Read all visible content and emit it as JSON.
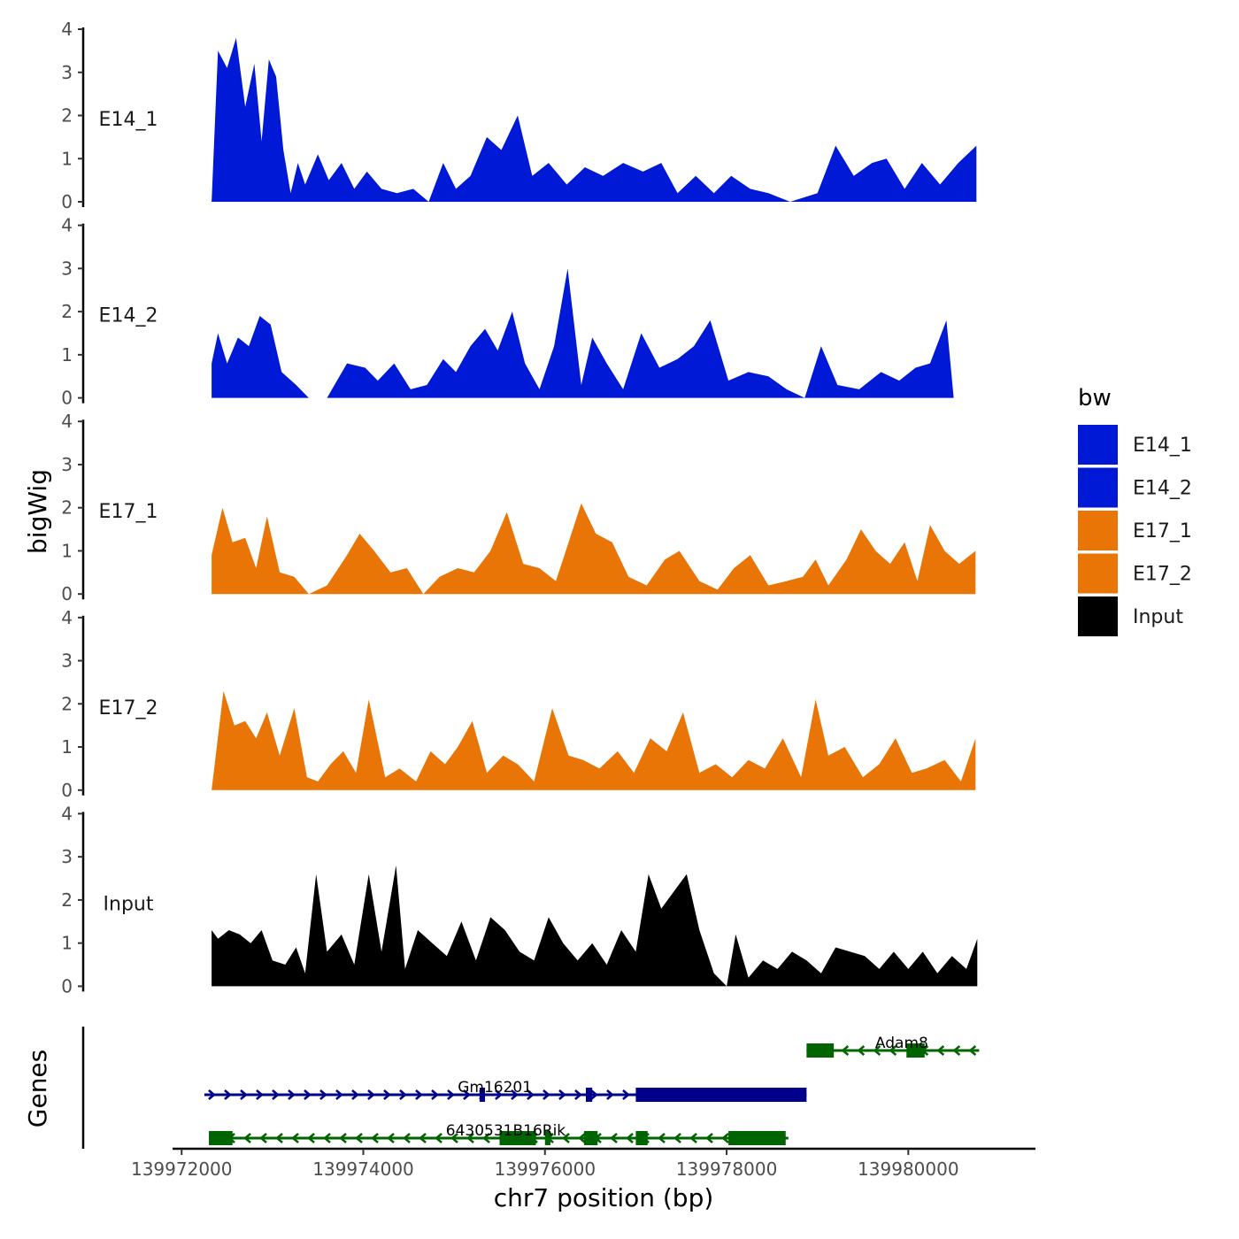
{
  "chart_data": {
    "type": "area",
    "ylabel": "bigWig",
    "xlabel": "chr7 position (bp)",
    "x_range": [
      139972000,
      139980800
    ],
    "xlim": [
      139971900,
      139981400
    ],
    "ylim": [
      0,
      4
    ],
    "y_ticks": [
      "0",
      "1",
      "2",
      "3",
      "4"
    ],
    "x_ticks": [
      {
        "value": 139972000,
        "label": "139972000"
      },
      {
        "value": 139974000,
        "label": "139974000"
      },
      {
        "value": 139976000,
        "label": "139976000"
      },
      {
        "value": 139978000,
        "label": "139978000"
      },
      {
        "value": 139980000,
        "label": "139980000"
      }
    ],
    "legend": {
      "title": "bw",
      "items": [
        {
          "label": "E14_1",
          "color": "#0019D6"
        },
        {
          "label": "E14_2",
          "color": "#0019D6"
        },
        {
          "label": "E17_1",
          "color": "#E87506"
        },
        {
          "label": "E17_2",
          "color": "#E87506"
        },
        {
          "label": "Input",
          "color": "#000000"
        }
      ]
    },
    "series": [
      {
        "name": "E14_1",
        "color": "#0019D6",
        "x": [
          139972330,
          139972400,
          139972500,
          139972600,
          139972700,
          139972800,
          139972880,
          139972960,
          139973040,
          139973120,
          139973200,
          139973280,
          139973360,
          139973500,
          139973620,
          139973760,
          139973900,
          139974040,
          139974200,
          139974370,
          139974550,
          139974720,
          139974880,
          139975020,
          139975180,
          139975360,
          139975520,
          139975700,
          139975860,
          139976040,
          139976240,
          139976440,
          139976640,
          139976860,
          139977080,
          139977280,
          139977460,
          139977660,
          139977860,
          139978050,
          139978260,
          139978460,
          139978700,
          139979000,
          139979200,
          139979400,
          139979600,
          139979760,
          139979960,
          139980150,
          139980350,
          139980550,
          139980750
        ],
        "y": [
          0,
          3.5,
          3.1,
          3.8,
          2.2,
          3.2,
          1.4,
          3.3,
          2.9,
          1.2,
          0.2,
          0.9,
          0.4,
          1.1,
          0.5,
          0.9,
          0.3,
          0.7,
          0.3,
          0.2,
          0.3,
          0.0,
          0.9,
          0.3,
          0.6,
          1.5,
          1.2,
          2.0,
          0.6,
          0.9,
          0.4,
          0.8,
          0.6,
          0.9,
          0.7,
          0.9,
          0.2,
          0.6,
          0.2,
          0.6,
          0.3,
          0.2,
          0.0,
          0.2,
          1.3,
          0.6,
          0.9,
          1.0,
          0.3,
          0.9,
          0.4,
          0.9,
          1.3
        ]
      },
      {
        "name": "E14_2",
        "color": "#0019D6",
        "x": [
          139972330,
          139972400,
          139972500,
          139972620,
          139972740,
          139972860,
          139972980,
          139973100,
          139973260,
          139973400,
          139973600,
          139973820,
          139974020,
          139974160,
          139974340,
          139974520,
          139974700,
          139974880,
          139975020,
          139975180,
          139975340,
          139975480,
          139975640,
          139975780,
          139975940,
          139976100,
          139976250,
          139976400,
          139976520,
          139976680,
          139976860,
          139977060,
          139977260,
          139977460,
          139977640,
          139977820,
          139978020,
          139978240,
          139978460,
          139978660,
          139978860,
          139979040,
          139979220,
          139979460,
          139979700,
          139979900,
          139980080,
          139980240,
          139980420,
          139980500
        ],
        "y": [
          0.8,
          1.5,
          0.8,
          1.4,
          1.2,
          1.9,
          1.7,
          0.6,
          0.3,
          0.0,
          0.0,
          0.8,
          0.7,
          0.4,
          0.8,
          0.2,
          0.3,
          0.9,
          0.6,
          1.2,
          1.6,
          1.1,
          2.0,
          0.8,
          0.2,
          1.2,
          3.0,
          0.3,
          1.4,
          0.8,
          0.2,
          1.5,
          0.7,
          0.9,
          1.2,
          1.8,
          0.4,
          0.6,
          0.5,
          0.2,
          0.0,
          1.2,
          0.3,
          0.2,
          0.6,
          0.4,
          0.7,
          0.8,
          1.8,
          0.0
        ]
      },
      {
        "name": "E17_1",
        "color": "#E87506",
        "x": [
          139972330,
          139972450,
          139972560,
          139972700,
          139972820,
          139972940,
          139973080,
          139973240,
          139973400,
          139973600,
          139973820,
          139973960,
          139974120,
          139974300,
          139974480,
          139974660,
          139974840,
          139975040,
          139975220,
          139975400,
          139975580,
          139975760,
          139975940,
          139976120,
          139976260,
          139976400,
          139976560,
          139976740,
          139976920,
          139977120,
          139977320,
          139977480,
          139977700,
          139977900,
          139978080,
          139978260,
          139978460,
          139978660,
          139978840,
          139978980,
          139979120,
          139979320,
          139979480,
          139979640,
          139979800,
          139979960,
          139980100,
          139980240,
          139980400,
          139980560,
          139980740
        ],
        "y": [
          0.9,
          2.0,
          1.2,
          1.3,
          0.6,
          1.8,
          0.5,
          0.4,
          0.0,
          0.2,
          0.9,
          1.4,
          1.0,
          0.5,
          0.6,
          0.0,
          0.4,
          0.6,
          0.5,
          1.0,
          1.9,
          0.7,
          0.6,
          0.3,
          1.2,
          2.1,
          1.4,
          1.2,
          0.4,
          0.2,
          0.8,
          1.0,
          0.3,
          0.1,
          0.6,
          0.9,
          0.2,
          0.3,
          0.4,
          0.8,
          0.2,
          0.8,
          1.5,
          1.0,
          0.7,
          1.2,
          0.3,
          1.6,
          1.0,
          0.7,
          1.0
        ]
      },
      {
        "name": "E17_2",
        "color": "#E87506",
        "x": [
          139972330,
          139972460,
          139972580,
          139972700,
          139972820,
          139972940,
          139973080,
          139973240,
          139973380,
          139973500,
          139973640,
          139973780,
          139973920,
          139974060,
          139974240,
          139974400,
          139974580,
          139974740,
          139974900,
          139975040,
          139975200,
          139975360,
          139975540,
          139975700,
          139975880,
          139976080,
          139976260,
          139976420,
          139976600,
          139976800,
          139976980,
          139977160,
          139977340,
          139977520,
          139977700,
          139977880,
          139978060,
          139978240,
          139978420,
          139978620,
          139978820,
          139978980,
          139979120,
          139979300,
          139979500,
          139979680,
          139979860,
          139980040,
          139980200,
          139980400,
          139980580,
          139980740
        ],
        "y": [
          0.0,
          2.3,
          1.5,
          1.6,
          1.2,
          1.8,
          0.8,
          1.9,
          0.3,
          0.2,
          0.6,
          0.9,
          0.4,
          2.1,
          0.3,
          0.5,
          0.2,
          0.9,
          0.6,
          1.0,
          1.6,
          0.4,
          0.8,
          0.6,
          0.2,
          1.9,
          0.8,
          0.7,
          0.5,
          0.9,
          0.4,
          1.2,
          0.9,
          1.8,
          0.4,
          0.6,
          0.3,
          0.7,
          0.5,
          1.2,
          0.3,
          2.1,
          0.8,
          1.0,
          0.3,
          0.6,
          1.2,
          0.4,
          0.5,
          0.7,
          0.2,
          1.2
        ]
      },
      {
        "name": "Input",
        "color": "#000000",
        "x": [
          139972330,
          139972400,
          139972520,
          139972640,
          139972760,
          139972880,
          139973000,
          139973140,
          139973260,
          139973360,
          139973480,
          139973600,
          139973760,
          139973900,
          139974060,
          139974200,
          139974360,
          139974460,
          139974600,
          139974760,
          139974920,
          139975080,
          139975240,
          139975400,
          139975560,
          139975720,
          139975880,
          139976040,
          139976200,
          139976360,
          139976520,
          139976680,
          139976840,
          139977000,
          139977140,
          139977280,
          139977420,
          139977560,
          139977700,
          139977860,
          139978000,
          139978100,
          139978240,
          139978400,
          139978560,
          139978720,
          139978880,
          139979040,
          139979200,
          139979360,
          139979520,
          139979680,
          139979840,
          139980000,
          139980160,
          139980320,
          139980480,
          139980640,
          139980760
        ],
        "y": [
          1.3,
          1.1,
          1.3,
          1.2,
          1.0,
          1.3,
          0.6,
          0.5,
          0.9,
          0.3,
          2.6,
          0.8,
          1.2,
          0.5,
          2.6,
          0.8,
          2.8,
          0.4,
          1.3,
          1.0,
          0.7,
          1.5,
          0.6,
          1.6,
          1.3,
          0.8,
          0.6,
          1.6,
          1.0,
          0.6,
          1.0,
          0.5,
          1.3,
          0.8,
          2.6,
          1.8,
          2.2,
          2.6,
          1.3,
          0.3,
          0.0,
          1.2,
          0.2,
          0.6,
          0.4,
          0.8,
          0.6,
          0.3,
          0.9,
          0.8,
          0.7,
          0.4,
          0.8,
          0.4,
          0.8,
          0.3,
          0.7,
          0.4,
          1.1
        ]
      }
    ],
    "genes_track": {
      "ylabel": "Genes",
      "genes": [
        {
          "name": "Adam8",
          "strand": "-",
          "color": "#006400",
          "start": 139978880,
          "end": 139980780,
          "row": 0,
          "exons": [
            [
              139978880,
              139979180
            ],
            [
              139979980,
              139980180
            ]
          ]
        },
        {
          "name": "Gm16201",
          "strand": "+",
          "color": "#00008B",
          "start": 139972250,
          "end": 139978880,
          "row": 1,
          "exons": [
            [
              139975280,
              139975340
            ],
            [
              139976450,
              139976520
            ],
            [
              139977000,
              139978880
            ]
          ]
        },
        {
          "name": "6430531B16Rik",
          "strand": "-",
          "color": "#006400",
          "start": 139972300,
          "end": 139978680,
          "row": 2,
          "exons": [
            [
              139972300,
              139972560
            ],
            [
              139975500,
              139975900
            ],
            [
              139976000,
              139976060
            ],
            [
              139976430,
              139976580
            ],
            [
              139977000,
              139977130
            ],
            [
              139978020,
              139978650
            ]
          ]
        }
      ]
    }
  }
}
